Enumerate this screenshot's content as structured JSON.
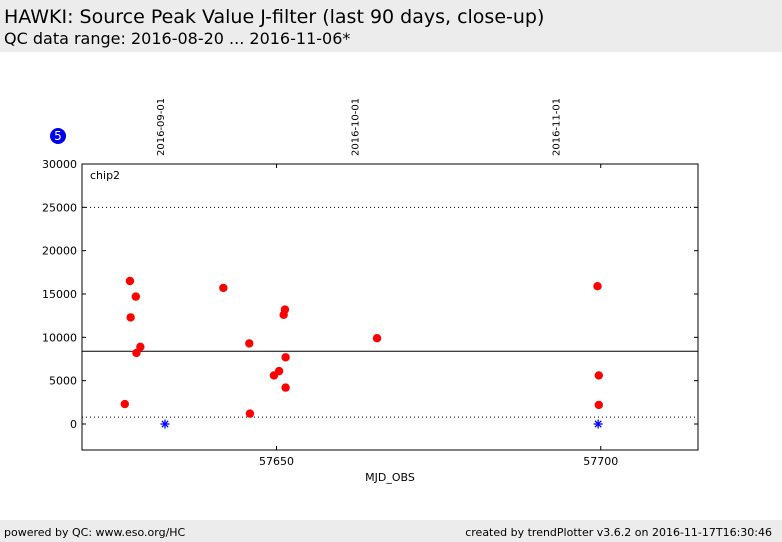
{
  "header": {
    "title": "HAWKI: Source Peak Value J-filter (last 90 days, close-up)",
    "subtitle": "QC data range: 2016-08-20 ... 2016-11-06*"
  },
  "footer": {
    "left": "powered by QC: www.eso.org/HC",
    "right": "created by trendPlotter v3.6.2 on 2016-11-17T16:30:46"
  },
  "chart_data": {
    "type": "scatter",
    "title": "",
    "xlabel": "MJD_OBS",
    "ylabel": "",
    "xlim": [
      57620,
      57715
    ],
    "ylim": [
      -3000,
      30000
    ],
    "x_ticks": [
      57650,
      57700
    ],
    "y_ticks": [
      0,
      5000,
      10000,
      15000,
      20000,
      25000,
      30000
    ],
    "panel_label": "chip2",
    "badge": "5",
    "date_markers": [
      {
        "label": "2016-09-01",
        "x": 57632
      },
      {
        "label": "2016-10-01",
        "x": 57662
      },
      {
        "label": "2016-11-01",
        "x": 57693
      }
    ],
    "reference_line": 8400,
    "threshold_lines": [
      25000,
      800
    ],
    "series": [
      {
        "marker": "circle",
        "color": "#ff0000",
        "points": [
          [
            57626.6,
            2300
          ],
          [
            57627.4,
            16500
          ],
          [
            57627.5,
            12300
          ],
          [
            57628.3,
            14700
          ],
          [
            57628.4,
            8200
          ],
          [
            57629.0,
            8900
          ],
          [
            57641.8,
            15700
          ],
          [
            57645.8,
            9300
          ],
          [
            57645.9,
            1200
          ],
          [
            57649.6,
            5600
          ],
          [
            57650.4,
            6100
          ],
          [
            57651.1,
            12600
          ],
          [
            57651.3,
            13200
          ],
          [
            57651.4,
            7700
          ],
          [
            57651.4,
            4200
          ],
          [
            57665.5,
            9900
          ],
          [
            57699.5,
            15900
          ],
          [
            57699.7,
            5600
          ],
          [
            57699.7,
            2200
          ]
        ]
      },
      {
        "marker": "star",
        "color": "#0000ff",
        "points": [
          [
            57632.8,
            0
          ],
          [
            57699.6,
            0
          ]
        ]
      }
    ]
  }
}
